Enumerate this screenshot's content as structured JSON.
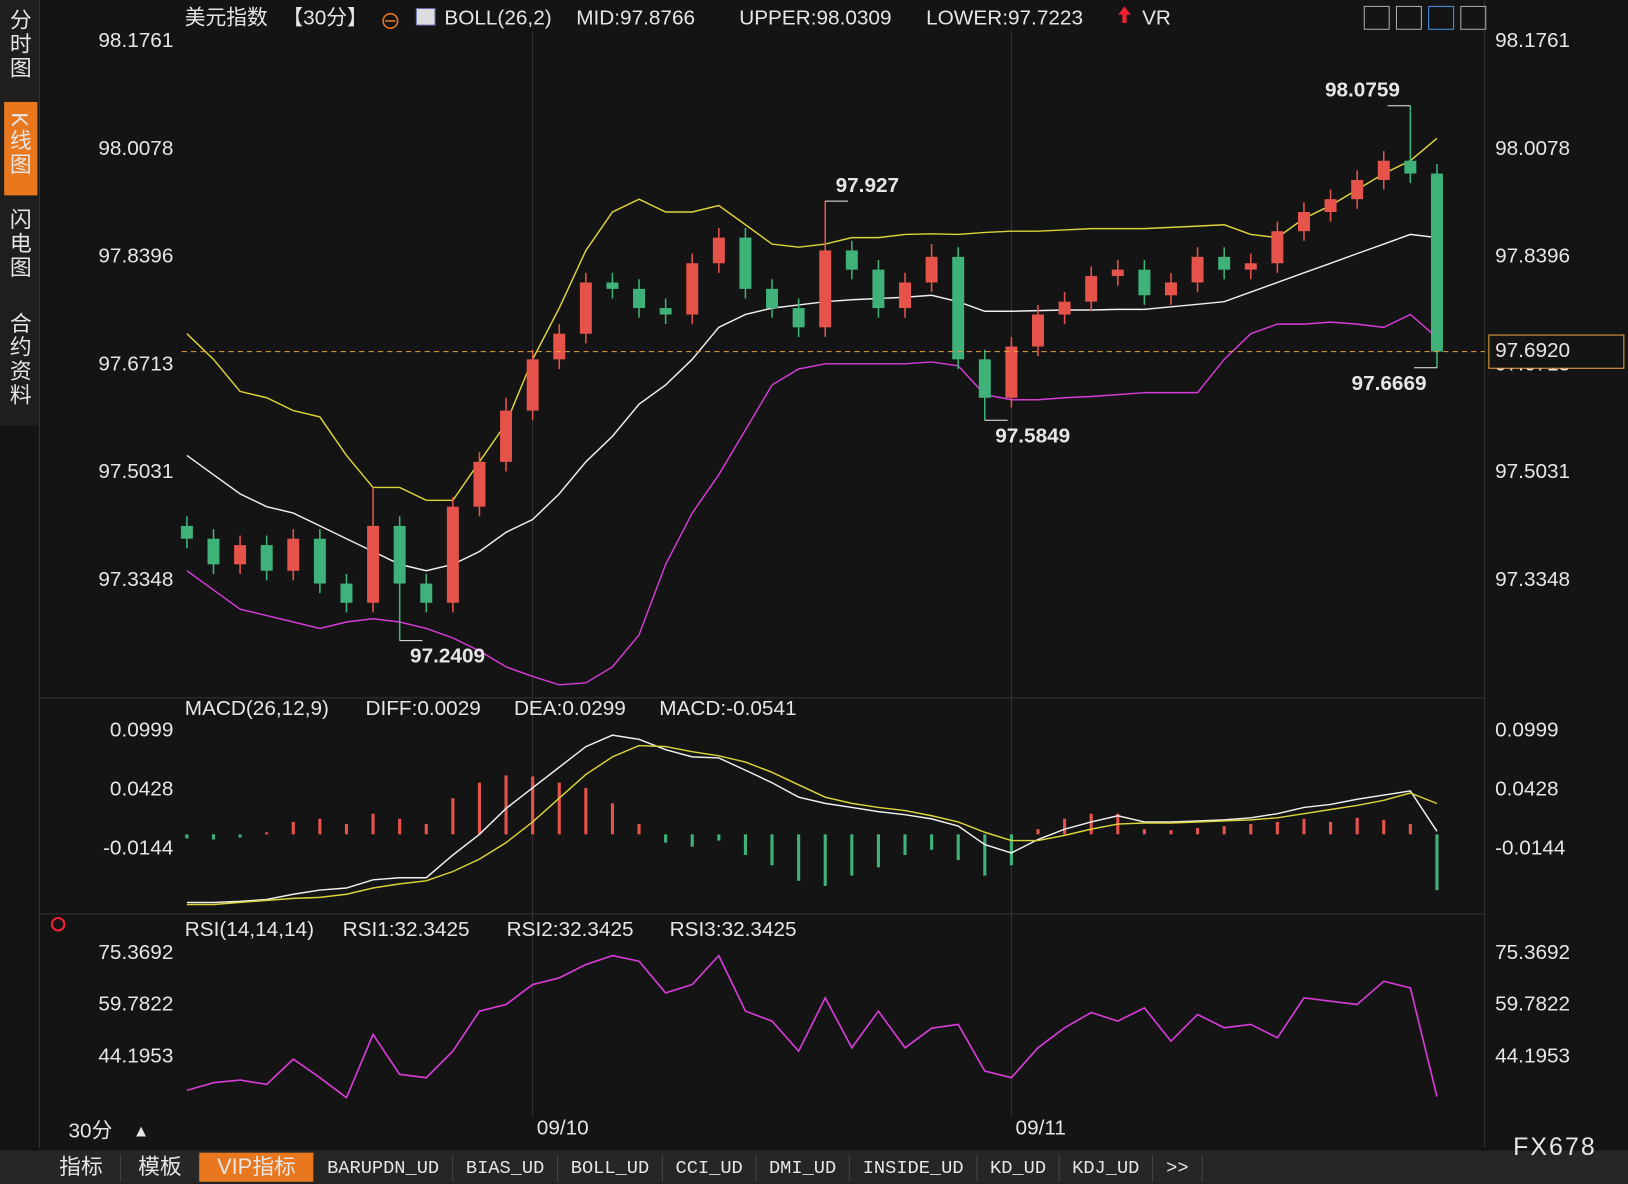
{
  "sidebar": [
    "分时图",
    "K线图",
    "闪电图",
    "合约资料"
  ],
  "period": "30分",
  "period_arrow": "▲",
  "watermark": "FX678",
  "tabs": [
    "指标",
    "模板",
    "VIP指标",
    "BARUPDN_UD",
    "BIAS_UD",
    "BOLL_UD",
    "CCI_UD",
    "DMI_UD",
    "INSIDE_UD",
    "KD_UD",
    "KDJ_UD",
    ">>"
  ],
  "chart_data": [
    {
      "type": "candlestick",
      "title": "美元指数",
      "period_label": "【30分】",
      "indicator": "BOLL(26,2)",
      "extra_indicator": "VR",
      "categories": [
        null,
        null,
        null,
        null,
        null,
        null,
        null,
        null,
        null,
        null,
        null,
        null,
        null,
        "09/10",
        null,
        null,
        null,
        null,
        null,
        null,
        null,
        null,
        null,
        null,
        null,
        null,
        null,
        null,
        null,
        null,
        null,
        "09/11",
        null,
        null,
        null,
        null,
        null,
        null,
        null,
        null,
        null,
        null,
        null,
        null,
        null,
        null,
        null,
        null
      ],
      "open": [
        97.42,
        97.4,
        97.36,
        97.39,
        97.35,
        97.4,
        97.33,
        97.3,
        97.42,
        97.33,
        97.3,
        97.45,
        97.52,
        97.6,
        97.68,
        97.72,
        97.8,
        97.79,
        97.76,
        97.75,
        97.83,
        97.87,
        97.79,
        97.76,
        97.73,
        97.85,
        97.82,
        97.76,
        97.8,
        97.84,
        97.68,
        97.62,
        97.7,
        97.75,
        97.77,
        97.81,
        97.82,
        97.78,
        97.8,
        97.84,
        97.82,
        97.83,
        97.88,
        97.91,
        97.93,
        97.96,
        97.99,
        97.97
      ],
      "high": [
        97.435,
        97.415,
        97.405,
        97.405,
        97.415,
        97.415,
        97.345,
        97.48,
        97.435,
        97.345,
        97.465,
        97.535,
        97.62,
        97.695,
        97.735,
        97.815,
        97.815,
        97.805,
        97.775,
        97.845,
        97.885,
        97.885,
        97.805,
        97.775,
        97.927,
        97.865,
        97.835,
        97.815,
        97.86,
        97.855,
        97.695,
        97.715,
        97.765,
        97.785,
        97.825,
        97.835,
        97.835,
        97.815,
        97.855,
        97.855,
        97.845,
        97.895,
        97.925,
        97.945,
        97.975,
        98.005,
        98.0759,
        97.985
      ],
      "low": [
        97.385,
        97.345,
        97.345,
        97.335,
        97.335,
        97.315,
        97.285,
        97.285,
        97.2409,
        97.285,
        97.285,
        97.435,
        97.505,
        97.585,
        97.665,
        97.705,
        97.775,
        97.745,
        97.735,
        97.735,
        97.815,
        97.775,
        97.745,
        97.715,
        97.715,
        97.805,
        97.745,
        97.745,
        97.785,
        97.665,
        97.5849,
        97.605,
        97.685,
        97.735,
        97.755,
        97.795,
        97.765,
        97.765,
        97.785,
        97.805,
        97.805,
        97.815,
        97.865,
        97.895,
        97.915,
        97.945,
        97.955,
        97.6669
      ],
      "close": [
        97.4,
        97.36,
        97.39,
        97.35,
        97.4,
        97.33,
        97.3,
        97.42,
        97.33,
        97.3,
        97.45,
        97.52,
        97.6,
        97.68,
        97.72,
        97.8,
        97.79,
        97.76,
        97.75,
        97.83,
        97.87,
        97.79,
        97.76,
        97.73,
        97.85,
        97.82,
        97.76,
        97.8,
        97.84,
        97.68,
        97.62,
        97.7,
        97.75,
        97.77,
        97.81,
        97.82,
        97.78,
        97.8,
        97.84,
        97.82,
        97.83,
        97.88,
        97.91,
        97.93,
        97.96,
        97.99,
        97.97,
        97.692
      ],
      "up_color": "#e5534b",
      "down_color": "#3fb27a",
      "series": [
        {
          "name": "MID:97.8766",
          "color": "#f0f0f0",
          "values": [
            97.53,
            97.5,
            97.47,
            97.45,
            97.44,
            97.42,
            97.4,
            97.38,
            97.36,
            97.35,
            97.36,
            97.38,
            97.41,
            97.43,
            97.47,
            97.52,
            97.56,
            97.61,
            97.64,
            97.68,
            97.73,
            97.75,
            97.76,
            97.765,
            97.77,
            97.773,
            97.775,
            97.777,
            97.78,
            97.77,
            97.755,
            97.755,
            97.756,
            97.757,
            97.757,
            97.758,
            97.758,
            97.762,
            97.766,
            97.77,
            97.785,
            97.8,
            97.815,
            97.83,
            97.845,
            97.86,
            97.875,
            97.87
          ]
        },
        {
          "name": "UPPER:98.0309",
          "color": "#dcd43a",
          "values": [
            97.72,
            97.68,
            97.63,
            97.62,
            97.6,
            97.59,
            97.53,
            97.48,
            97.48,
            97.46,
            97.46,
            97.52,
            97.58,
            97.68,
            97.76,
            97.85,
            97.91,
            97.93,
            97.91,
            97.91,
            97.92,
            97.89,
            97.86,
            97.855,
            97.86,
            97.87,
            97.87,
            97.875,
            97.876,
            97.875,
            97.878,
            97.88,
            97.88,
            97.882,
            97.884,
            97.884,
            97.884,
            97.886,
            97.888,
            97.89,
            97.875,
            97.87,
            97.9,
            97.92,
            97.945,
            97.97,
            97.99,
            98.025
          ]
        },
        {
          "name": "LOWER:97.7223",
          "color": "#d63cd6",
          "values": [
            97.35,
            97.32,
            97.29,
            97.28,
            97.27,
            97.26,
            97.27,
            97.275,
            97.27,
            97.26,
            97.245,
            97.225,
            97.2,
            97.185,
            97.172,
            97.175,
            97.2,
            97.25,
            97.36,
            97.44,
            97.5,
            97.57,
            97.64,
            97.665,
            97.673,
            97.673,
            97.673,
            97.673,
            97.676,
            97.67,
            97.625,
            97.617,
            97.617,
            97.62,
            97.622,
            97.625,
            97.628,
            97.628,
            97.628,
            97.68,
            97.72,
            97.735,
            97.735,
            97.738,
            97.735,
            97.73,
            97.75,
            97.714
          ]
        }
      ],
      "last_price": {
        "value": 97.692,
        "label": "97.6920",
        "color": "#e8a33c"
      },
      "ylim": [
        97.158,
        98.192
      ],
      "yticks": [
        98.1761,
        98.0078,
        97.8396,
        97.6713,
        97.5031,
        97.3348
      ]
    },
    {
      "type": "macd",
      "title": "MACD(26,12,9)",
      "series": [
        {
          "name": "DIFF:0.0029",
          "color": "#f0f0f0",
          "values": [
            -0.066,
            -0.066,
            -0.065,
            -0.063,
            -0.058,
            -0.054,
            -0.052,
            -0.044,
            -0.042,
            -0.042,
            -0.02,
            0.0,
            0.025,
            0.045,
            0.065,
            0.085,
            0.096,
            0.092,
            0.082,
            0.075,
            0.074,
            0.062,
            0.05,
            0.036,
            0.03,
            0.026,
            0.022,
            0.019,
            0.015,
            0.008,
            -0.01,
            -0.018,
            -0.005,
            0.005,
            0.012,
            0.018,
            0.012,
            0.012,
            0.013,
            0.014,
            0.016,
            0.02,
            0.026,
            0.029,
            0.034,
            0.038,
            0.042,
            0.0029
          ]
        },
        {
          "name": "DEA:0.0299",
          "color": "#dcd43a",
          "values": [
            -0.068,
            -0.068,
            -0.066,
            -0.064,
            -0.062,
            -0.061,
            -0.058,
            -0.052,
            -0.048,
            -0.045,
            -0.036,
            -0.024,
            -0.008,
            0.012,
            0.035,
            0.058,
            0.075,
            0.086,
            0.085,
            0.08,
            0.076,
            0.07,
            0.06,
            0.048,
            0.036,
            0.03,
            0.026,
            0.023,
            0.018,
            0.012,
            0.002,
            -0.006,
            -0.006,
            -0.001,
            0.005,
            0.01,
            0.011,
            0.011,
            0.012,
            0.013,
            0.014,
            0.016,
            0.02,
            0.024,
            0.028,
            0.033,
            0.04,
            0.0299
          ]
        },
        {
          "name": "MACD:-0.0541",
          "color": "#d63cd6",
          "bars": true,
          "values": [
            -0.004,
            -0.005,
            -0.003,
            0.002,
            0.012,
            0.015,
            0.01,
            0.02,
            0.015,
            0.01,
            0.035,
            0.05,
            0.057,
            0.056,
            0.05,
            0.045,
            0.03,
            0.01,
            -0.008,
            -0.012,
            -0.006,
            -0.02,
            -0.03,
            -0.045,
            -0.05,
            -0.04,
            -0.032,
            -0.02,
            -0.015,
            -0.025,
            -0.04,
            -0.03,
            0.005,
            0.015,
            0.02,
            0.02,
            0.005,
            0.004,
            0.006,
            0.008,
            0.01,
            0.012,
            0.015,
            0.012,
            0.016,
            0.014,
            0.01,
            -0.0541
          ]
        }
      ],
      "up_color": "#e5534b",
      "down_color": "#3fb27a",
      "ylim": [
        -0.073,
        0.109
      ],
      "yticks": [
        0.0999,
        0.0428,
        -0.0144
      ]
    },
    {
      "type": "line",
      "title": "RSI(14,14,14)",
      "series": [
        {
          "name": "RSI1:32.3425",
          "color": "#f0f0f0"
        },
        {
          "name": "RSI2:32.3425",
          "color": "#dcd43a"
        },
        {
          "name": "RSI3:32.3425",
          "color": "#d63cd6",
          "values": [
            34.2,
            36.5,
            37.3,
            36,
            43.6,
            38,
            32,
            51,
            39,
            38,
            46,
            58,
            60,
            66,
            68,
            72,
            74.7,
            73,
            63.5,
            66,
            74.7,
            58,
            55,
            46,
            62,
            47,
            58,
            47,
            52.9,
            54,
            40,
            38,
            47,
            53,
            57.6,
            55,
            59,
            49,
            57,
            53,
            54,
            50,
            62,
            61,
            60,
            67,
            65,
            32.3425
          ]
        }
      ],
      "ylim": [
        26.4,
        78.5
      ],
      "yticks": [
        75.3692,
        59.7822,
        44.1953
      ]
    }
  ]
}
